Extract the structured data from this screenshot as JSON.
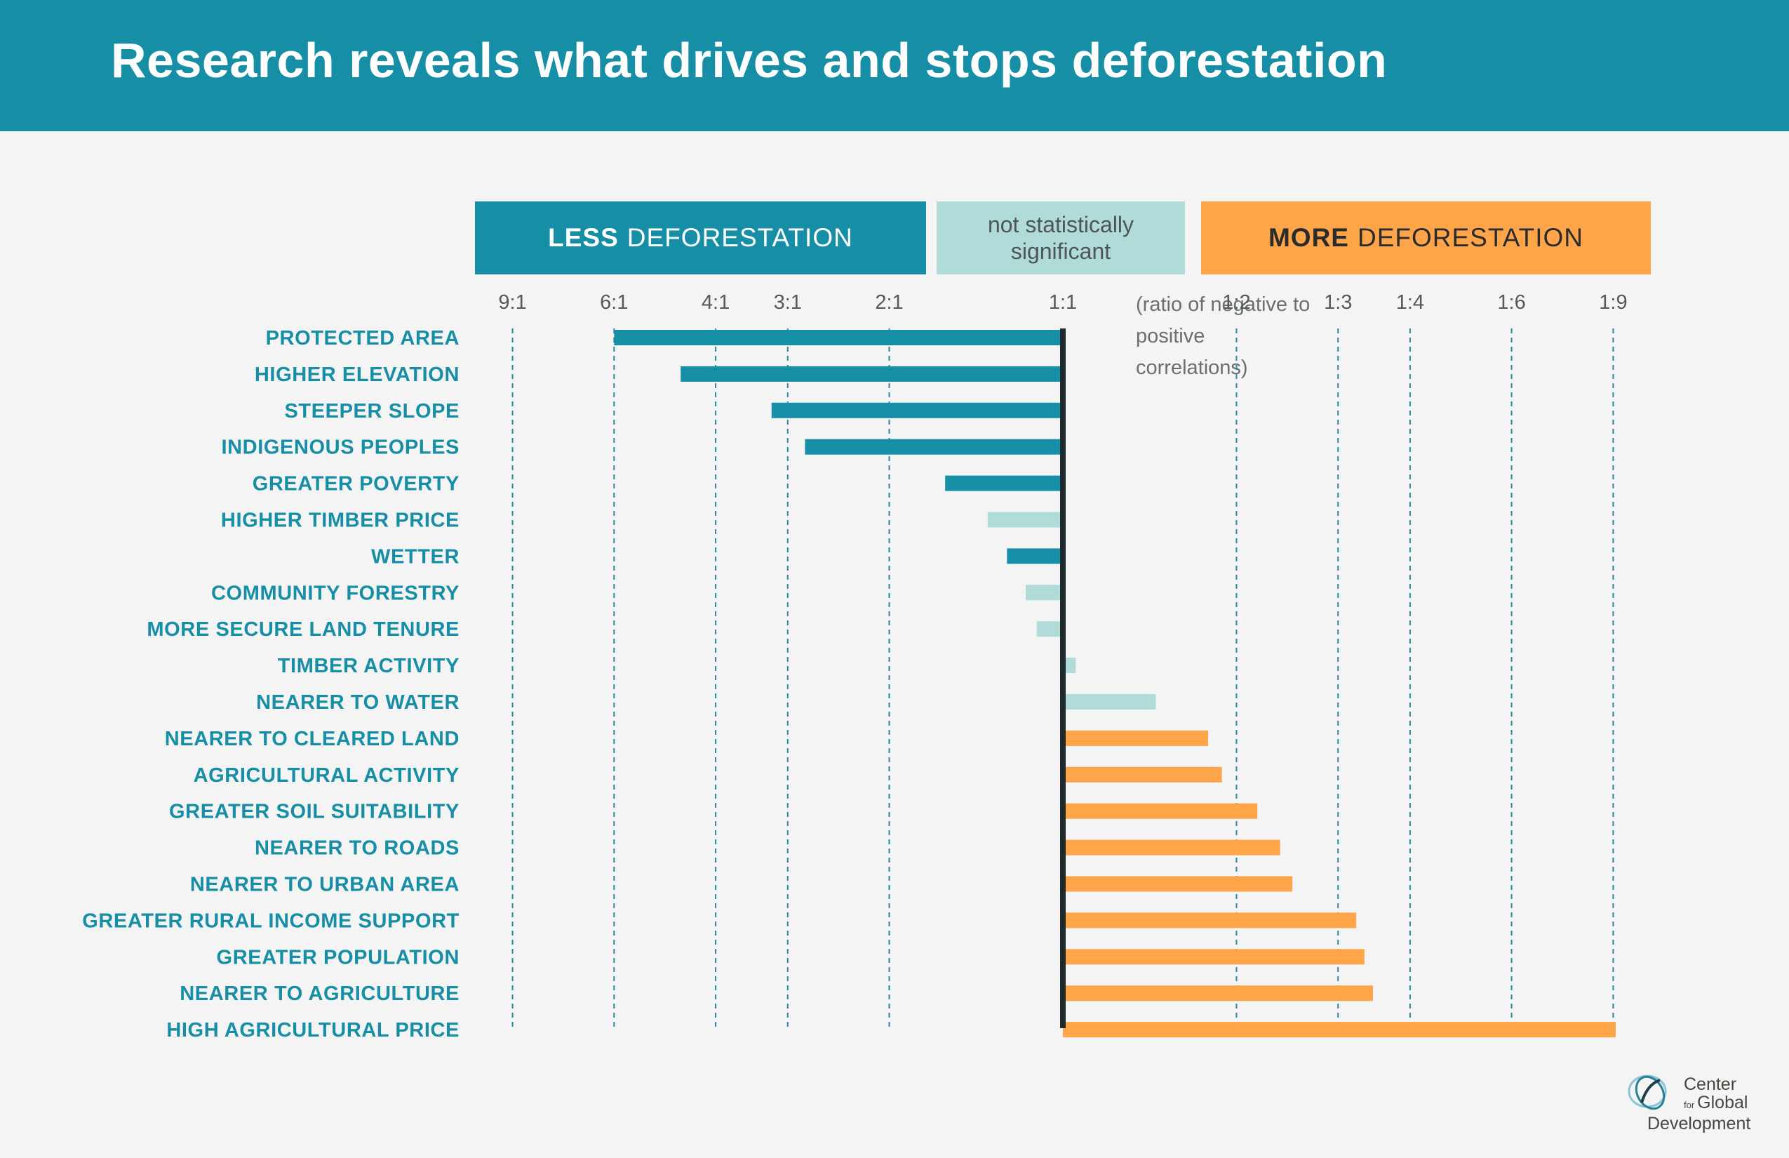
{
  "title": "Research reveals what drives and stops deforestation",
  "legend": {
    "less_bold": "LESS",
    "less_rest": "DEFORESTATION",
    "not_significant": "not statistically significant",
    "more_bold": "MORE",
    "more_rest": "DEFORESTATION"
  },
  "note": "(ratio of negative to positive correlations)",
  "logo": {
    "line1": "Center",
    "line2_small": "for",
    "line2": "Global",
    "line3": "Development"
  },
  "colors": {
    "less": "#168ea6",
    "not_significant": "#b0dbd8",
    "more": "#fea54a",
    "center_line": "#1f2a2c",
    "label": "#168ea6",
    "header": "#168ea6"
  },
  "chart_data": {
    "type": "bar",
    "orientation": "horizontal",
    "ticks": [
      "9:1",
      "6:1",
      "4:1",
      "3:1",
      "2:1",
      "1:1",
      "1:2",
      "1:3",
      "1:4",
      "1:6",
      "1:9"
    ],
    "tick_values": [
      9,
      6,
      4,
      3,
      2,
      1,
      0.5,
      0.3333,
      0.25,
      0.1667,
      0.1111
    ],
    "x_scale": "log",
    "xlim": [
      9,
      0.1111
    ],
    "xlabel": "(ratio of negative to positive correlations)",
    "categories": [
      "PROTECTED AREA",
      "HIGHER ELEVATION",
      "STEEPER SLOPE",
      "INDIGENOUS PEOPLES",
      "GREATER POVERTY",
      "HIGHER TIMBER PRICE",
      "WETTER",
      "COMMUNITY FORESTRY",
      "MORE SECURE LAND TENURE",
      "TIMBER ACTIVITY",
      "NEARER TO WATER",
      "NEARER TO CLEARED LAND",
      "AGRICULTURAL ACTIVITY",
      "GREATER SOIL SUITABILITY",
      "NEARER TO ROADS",
      "NEARER TO URBAN AREA",
      "GREATER RURAL INCOME SUPPORT",
      "GREATER POPULATION",
      "NEARER TO AGRICULTURE",
      "HIGH AGRICULTURAL PRICE"
    ],
    "values": [
      6.0,
      4.6,
      3.2,
      2.8,
      1.6,
      1.35,
      1.25,
      1.16,
      1.11,
      0.95,
      0.69,
      0.56,
      0.53,
      0.46,
      0.42,
      0.4,
      0.31,
      0.3,
      0.29,
      0.11
    ],
    "significance": [
      "less",
      "less",
      "less",
      "less",
      "less",
      "ns",
      "less",
      "ns",
      "ns",
      "ns",
      "ns",
      "more",
      "more",
      "more",
      "more",
      "more",
      "more",
      "more",
      "more",
      "more"
    ],
    "grid": "dashed at ticks"
  }
}
